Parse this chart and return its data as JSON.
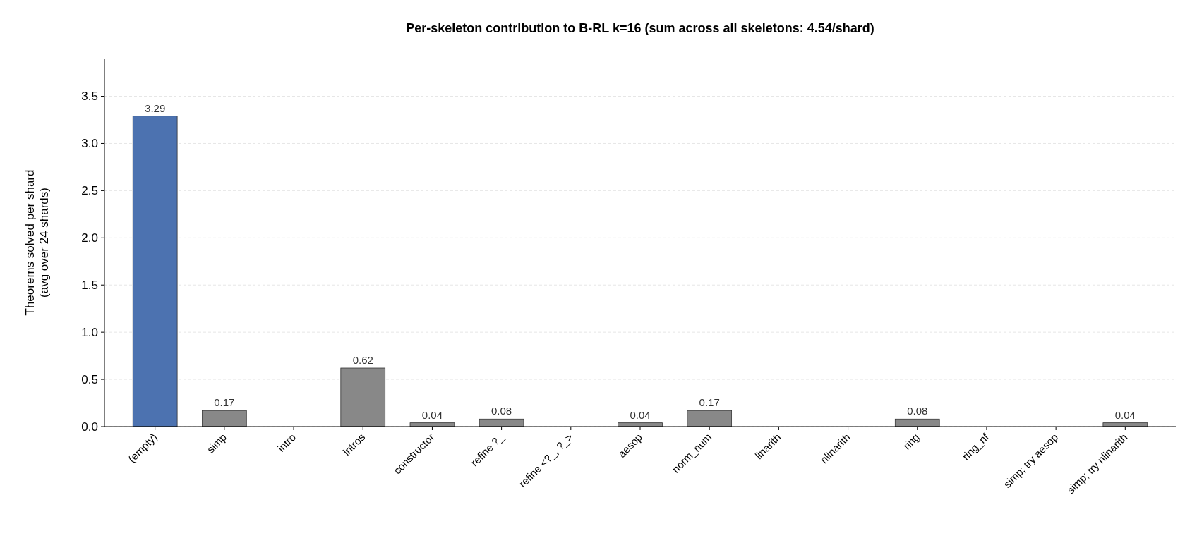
{
  "chart_data": {
    "type": "bar",
    "title": "Per-skeleton contribution to B-RL k=16 (sum across all skeletons: 4.54/shard)",
    "ylabel": "Theorems solved per shard\n(avg over 24 shards)",
    "categories": [
      "(empty)",
      "simp",
      "intro",
      "intros",
      "constructor",
      "refine ?_",
      "refine <?_, ?_>",
      "aesop",
      "norm_num",
      "linarith",
      "nlinarith",
      "ring",
      "ring_nf",
      "simp; try aesop",
      "simp; try nlinarith"
    ],
    "values": [
      3.29,
      0.17,
      0,
      0.62,
      0.04,
      0.08,
      0,
      0.04,
      0.17,
      0,
      0,
      0.08,
      0,
      0,
      0.04
    ],
    "colors": [
      "#4c72b0",
      "#888888",
      "#888888",
      "#888888",
      "#888888",
      "#888888",
      "#888888",
      "#888888",
      "#888888",
      "#888888",
      "#888888",
      "#888888",
      "#888888",
      "#888888",
      "#888888"
    ],
    "value_labels": [
      "3.29",
      "0.17",
      null,
      "0.62",
      "0.04",
      "0.08",
      null,
      "0.04",
      "0.17",
      null,
      null,
      "0.08",
      null,
      null,
      "0.04"
    ],
    "ylim": [
      0,
      3.9
    ],
    "yticks": [
      {
        "value": 0,
        "label": "0.0"
      },
      {
        "value": 0.5,
        "label": "0.5"
      },
      {
        "value": 1,
        "label": "1.0"
      },
      {
        "value": 1.5,
        "label": "1.5"
      },
      {
        "value": 2,
        "label": "2.0"
      },
      {
        "value": 2.5,
        "label": "2.5"
      },
      {
        "value": 3,
        "label": "3.0"
      },
      {
        "value": 3.5,
        "label": "3.5"
      }
    ],
    "grid": "y"
  }
}
